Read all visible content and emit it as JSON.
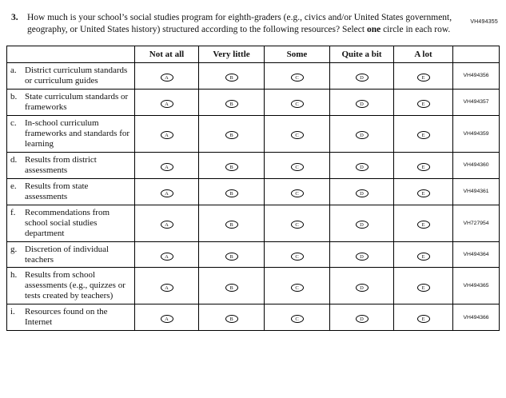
{
  "meta": {
    "top_right_code": "VH494355"
  },
  "question": {
    "number": "3.",
    "part1": "How much is your school’s social studies program for eighth-graders (e.g., civics and/or United States government, geography, or United States history) structured according to the following resources? Select ",
    "bold_word": "one",
    "part2": " circle in each row."
  },
  "table": {
    "columns": [
      "Not at all",
      "Very little",
      "Some",
      "Quite a bit",
      "A lot"
    ],
    "option_letters": [
      "A",
      "B",
      "C",
      "D",
      "E"
    ],
    "rows": [
      {
        "letter": "a.",
        "text": "District curriculum standards or curriculum guides",
        "code": "VH494356"
      },
      {
        "letter": "b.",
        "text": "State curriculum standards or frameworks",
        "code": "VH494357"
      },
      {
        "letter": "c.",
        "text": "In-school curriculum frameworks and standards for learning",
        "code": "VH494359"
      },
      {
        "letter": "d.",
        "text": "Results from district assessments",
        "code": "VH494360"
      },
      {
        "letter": "e.",
        "text": "Results from state assessments",
        "code": "VH494361"
      },
      {
        "letter": "f.",
        "text": "Recommendations from school social studies department",
        "code": "VH727954"
      },
      {
        "letter": "g.",
        "text": "Discretion of individual teachers",
        "code": "VH494364"
      },
      {
        "letter": "h.",
        "text": "Results from school assessments (e.g., quizzes or tests created by teachers)",
        "code": "VH494365"
      },
      {
        "letter": "i.",
        "text": "Resources found on the Internet",
        "code": "VH494366"
      }
    ]
  }
}
